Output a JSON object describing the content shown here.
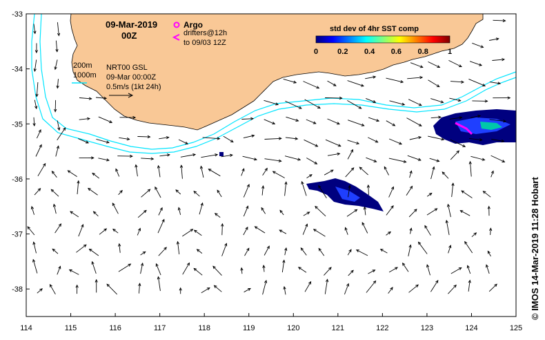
{
  "title": {
    "date": "09-Mar-2019",
    "hour": "00Z"
  },
  "legend": {
    "argo_label": "Argo",
    "drifters_line1": "drifters@12h",
    "drifters_line2": "to 09/03 12Z",
    "depth_200": "200m",
    "depth_1000": "1000m",
    "product_line1": "NRT00 GSL",
    "product_line2": "09-Mar 00:00Z",
    "scale_label": "0.5m/s (1kt 24h)"
  },
  "colorbar": {
    "title": "std dev of 4hr SST comp",
    "ticks": [
      "0",
      "0.2",
      "0.4",
      "0.6",
      "0.8",
      "1"
    ],
    "colors": [
      "#00007f",
      "#0000ff",
      "#007fff",
      "#00ffff",
      "#7fff7f",
      "#ffff00",
      "#ff7f00",
      "#ff0000",
      "#7f0000"
    ]
  },
  "credit": "© IMOS 14-Mar-2019 11:28 Hobart",
  "axes": {
    "x_ticks": [
      "114",
      "115",
      "116",
      "117",
      "118",
      "119",
      "120",
      "121",
      "122",
      "123",
      "124",
      "125"
    ],
    "y_ticks": [
      "-33",
      "-34",
      "-35",
      "-36",
      "-37",
      "-38"
    ],
    "lon_range": [
      114,
      125
    ],
    "lat_range": [
      -38.5,
      -33
    ]
  },
  "colors": {
    "land": "#f9c896",
    "isobath": "#00e5ff",
    "arrow": "#000000",
    "drifter": "#ff00ff",
    "argo": "#ff00ff"
  }
}
